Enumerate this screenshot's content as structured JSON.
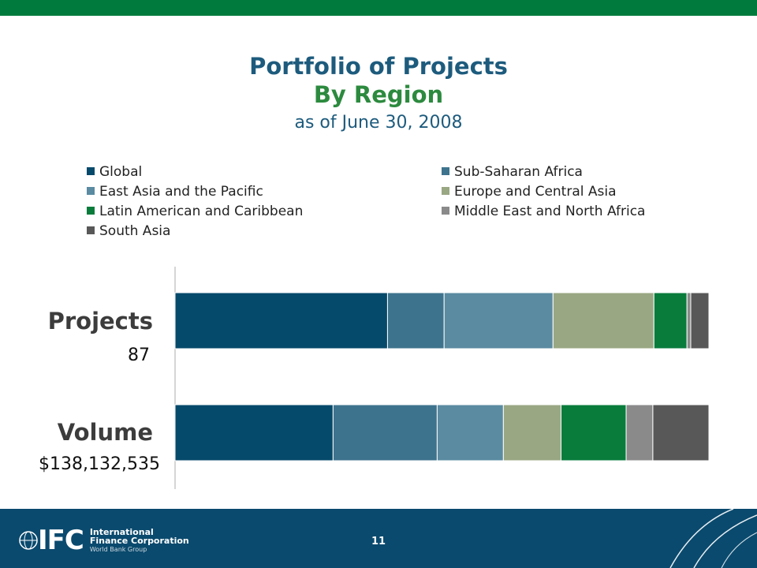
{
  "colors": {
    "top_bar": "#007a3d",
    "footer_bg": "#0a4a6e",
    "title_blue": "#1d5b7d",
    "title_green": "#2c8a3e"
  },
  "title": {
    "line1": "Portfolio of Projects",
    "line2": "By Region",
    "line3": "as of June 30, 2008"
  },
  "footer": {
    "logo_mark": "IFC",
    "logo_line1": "International",
    "logo_line2": "Finance Corporation",
    "logo_line3": "World Bank Group",
    "page_number": "11"
  },
  "chart_data": {
    "type": "bar",
    "orientation": "horizontal",
    "stacked": "percent",
    "categories": [
      "Projects",
      "Volume"
    ],
    "category_values": [
      "87",
      "$138,132,535"
    ],
    "legend_position": "top",
    "grid": false,
    "series": [
      {
        "name": "Global",
        "color": "#064a6b",
        "values": [
          39.8,
          29.6
        ]
      },
      {
        "name": "Sub-Saharan Africa",
        "color": "#3e738d",
        "values": [
          10.6,
          19.5
        ]
      },
      {
        "name": "East Asia and the Pacific",
        "color": "#5a8ba1",
        "values": [
          20.4,
          12.4
        ]
      },
      {
        "name": "Europe and Central Asia",
        "color": "#99a783",
        "values": [
          18.9,
          10.8
        ]
      },
      {
        "name": "Latin American and Caribbean",
        "color": "#097c3c",
        "values": [
          6.2,
          12.2
        ]
      },
      {
        "name": "Middle East and North Africa",
        "color": "#8a8a8a",
        "values": [
          0.7,
          5.0
        ]
      },
      {
        "name": "South Asia",
        "color": "#585858",
        "values": [
          3.4,
          10.5
        ]
      }
    ]
  }
}
